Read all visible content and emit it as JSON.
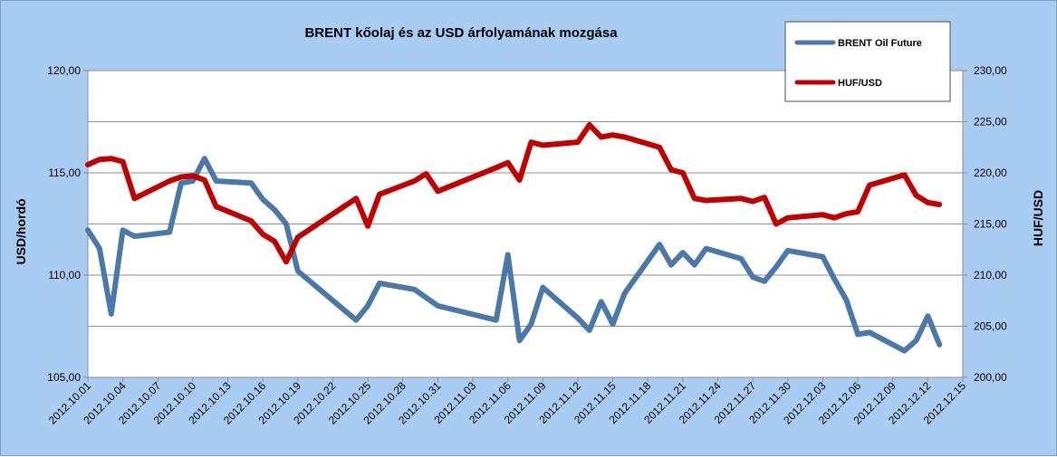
{
  "chart_data": {
    "type": "line",
    "title": "BRENT kőolaj és az USD árfolyamának mozgása",
    "ylabel_left": "USD/hordó",
    "ylabel_right": "HUF/USD",
    "ylim_left": [
      105,
      120
    ],
    "ylim_right": [
      200,
      230
    ],
    "yticks_left": [
      "105,00",
      "110,00",
      "115,00",
      "120,00"
    ],
    "yticks_right": [
      "200,00",
      "205,00",
      "210,00",
      "215,00",
      "220,00",
      "225,00",
      "230,00"
    ],
    "xlim": [
      "2012.10.01",
      "2012.12.15"
    ],
    "xticks": [
      "2012.10.01",
      "2012.10.04",
      "2012.10.07",
      "2012.10.10",
      "2012.10.13",
      "2012.10.16",
      "2012.10.19",
      "2012.10.22",
      "2012.10.25",
      "2012.10.28",
      "2012.10.31",
      "2012.11.03",
      "2012.11.06",
      "2012.11.09",
      "2012.11.12",
      "2012.11.15",
      "2012.11.18",
      "2012.11.21",
      "2012.11.24",
      "2012.11.27",
      "2012.11.30",
      "2012.12.03",
      "2012.12.06",
      "2012.12.09",
      "2012.12.12",
      "2012.12.15"
    ],
    "grid": true,
    "legend_position": "top-right",
    "series": [
      {
        "name": "BRENT Oil Future",
        "axis": "left",
        "color": "#4a78a8",
        "x": [
          "2012.10.01",
          "2012.10.02",
          "2012.10.03",
          "2012.10.04",
          "2012.10.05",
          "2012.10.08",
          "2012.10.09",
          "2012.10.10",
          "2012.10.11",
          "2012.10.12",
          "2012.10.15",
          "2012.10.16",
          "2012.10.17",
          "2012.10.18",
          "2012.10.19",
          "2012.10.24",
          "2012.10.25",
          "2012.10.26",
          "2012.10.29",
          "2012.10.30",
          "2012.10.31",
          "2012.11.05",
          "2012.11.06",
          "2012.11.07",
          "2012.11.08",
          "2012.11.09",
          "2012.11.12",
          "2012.11.13",
          "2012.11.14",
          "2012.11.15",
          "2012.11.16",
          "2012.11.19",
          "2012.11.20",
          "2012.11.21",
          "2012.11.22",
          "2012.11.23",
          "2012.11.26",
          "2012.11.27",
          "2012.11.28",
          "2012.11.29",
          "2012.11.30",
          "2012.12.03",
          "2012.12.04",
          "2012.12.05",
          "2012.12.06",
          "2012.12.07",
          "2012.12.10",
          "2012.12.11",
          "2012.12.12",
          "2012.12.13"
        ],
        "values": [
          112.2,
          111.3,
          108.1,
          112.2,
          111.9,
          112.1,
          114.5,
          114.6,
          115.7,
          114.6,
          114.5,
          113.7,
          113.2,
          112.5,
          110.2,
          107.8,
          108.5,
          109.6,
          109.3,
          108.9,
          108.5,
          107.8,
          111.0,
          106.8,
          107.6,
          109.4,
          107.9,
          107.3,
          108.7,
          107.6,
          109.1,
          111.5,
          110.5,
          111.1,
          110.5,
          111.3,
          110.8,
          109.9,
          109.7,
          110.4,
          111.2,
          110.9,
          109.8,
          108.8,
          107.1,
          107.2,
          106.3,
          106.8,
          108.0,
          106.6
        ]
      },
      {
        "name": "HUF/USD",
        "axis": "right",
        "color": "#c00000",
        "x": [
          "2012.10.01",
          "2012.10.02",
          "2012.10.03",
          "2012.10.04",
          "2012.10.05",
          "2012.10.08",
          "2012.10.09",
          "2012.10.10",
          "2012.10.11",
          "2012.10.12",
          "2012.10.15",
          "2012.10.16",
          "2012.10.17",
          "2012.10.18",
          "2012.10.19",
          "2012.10.24",
          "2012.10.25",
          "2012.10.26",
          "2012.10.29",
          "2012.10.30",
          "2012.10.31",
          "2012.11.05",
          "2012.11.06",
          "2012.11.07",
          "2012.11.08",
          "2012.11.09",
          "2012.11.12",
          "2012.11.13",
          "2012.11.14",
          "2012.11.15",
          "2012.11.16",
          "2012.11.19",
          "2012.11.20",
          "2012.11.21",
          "2012.11.22",
          "2012.11.23",
          "2012.11.26",
          "2012.11.27",
          "2012.11.28",
          "2012.11.29",
          "2012.11.30",
          "2012.12.03",
          "2012.12.04",
          "2012.12.05",
          "2012.12.06",
          "2012.12.07",
          "2012.12.10",
          "2012.12.11",
          "2012.12.12",
          "2012.12.13"
        ],
        "values": [
          220.8,
          221.3,
          221.4,
          221.1,
          217.5,
          219.2,
          219.6,
          219.7,
          219.3,
          216.7,
          215.3,
          214.0,
          213.3,
          211.3,
          213.7,
          217.5,
          214.8,
          217.9,
          219.2,
          219.9,
          218.2,
          220.5,
          221.0,
          219.3,
          223.0,
          222.7,
          223.0,
          224.7,
          223.5,
          223.7,
          223.5,
          222.5,
          220.3,
          220.0,
          217.5,
          217.3,
          217.5,
          217.2,
          217.6,
          215.0,
          215.6,
          215.9,
          215.6,
          216.0,
          216.2,
          218.8,
          219.8,
          217.8,
          217.1,
          216.9
        ]
      }
    ]
  }
}
